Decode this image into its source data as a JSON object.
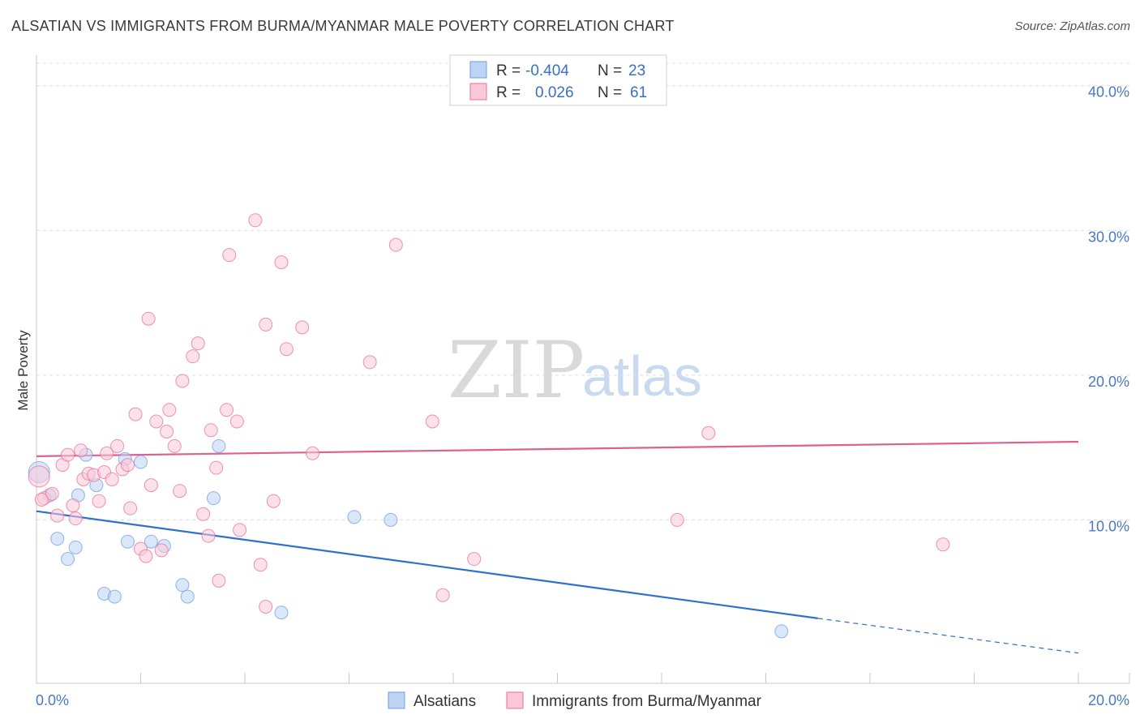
{
  "header": {
    "title": "ALSATIAN VS IMMIGRANTS FROM BURMA/MYANMAR MALE POVERTY CORRELATION CHART",
    "source": "Source: ZipAtlas.com"
  },
  "watermark": {
    "zip": "ZIP",
    "atlas": "atlas"
  },
  "legend": {
    "rows": [
      {
        "r_label": "R =",
        "r_value": "-0.404",
        "n_label": "N =",
        "n_value": "23",
        "color": "#a9c7ef"
      },
      {
        "r_label": "R =",
        "r_value": "0.026",
        "n_label": "N =",
        "n_value": "61",
        "color": "#f5b8cc"
      }
    ]
  },
  "bottom_legend": [
    {
      "label": "Alsatians",
      "color": "#a9c7ef"
    },
    {
      "label": "Immigrants from Burma/Myanmar",
      "color": "#f5b8cc"
    }
  ],
  "chart_data": {
    "type": "scatter",
    "title": "ALSATIAN VS IMMIGRANTS FROM BURMA/MYANMAR MALE POVERTY CORRELATION CHART",
    "xlabel": "",
    "ylabel": "Male Poverty",
    "xlim": [
      0,
      20
    ],
    "ylim": [
      0,
      42
    ],
    "x_tick_labels": [
      {
        "value": 0,
        "label": "0.0%"
      },
      {
        "value": 20,
        "label": "20.0%"
      }
    ],
    "y_tick_labels": [
      {
        "value": 10,
        "label": "10.0%"
      },
      {
        "value": 20,
        "label": "20.0%"
      },
      {
        "value": 30,
        "label": "30.0%"
      },
      {
        "value": 40,
        "label": "40.0%"
      }
    ],
    "series": [
      {
        "name": "Alsatians",
        "color": "#6d9de0",
        "fill": "#bcd3f3",
        "trend": {
          "x0": 0,
          "y0": 10.6,
          "x1": 15.0,
          "y1": 3.2,
          "dash_to_x": 20,
          "dash_to_y": 0.8
        },
        "points": [
          [
            0.05,
            13.3
          ],
          [
            0.25,
            11.7
          ],
          [
            0.4,
            8.7
          ],
          [
            0.6,
            7.3
          ],
          [
            0.75,
            8.1
          ],
          [
            0.8,
            11.7
          ],
          [
            0.95,
            14.5
          ],
          [
            1.15,
            12.4
          ],
          [
            1.3,
            4.9
          ],
          [
            1.5,
            4.7
          ],
          [
            1.7,
            14.2
          ],
          [
            1.75,
            8.5
          ],
          [
            2.0,
            14.0
          ],
          [
            2.2,
            8.5
          ],
          [
            2.45,
            8.2
          ],
          [
            2.8,
            5.5
          ],
          [
            2.9,
            4.7
          ],
          [
            3.4,
            11.5
          ],
          [
            3.5,
            15.1
          ],
          [
            4.7,
            3.6
          ],
          [
            6.1,
            10.2
          ],
          [
            6.8,
            10.0
          ],
          [
            14.3,
            2.3
          ]
        ]
      },
      {
        "name": "Immigrants from Burma/Myanmar",
        "color": "#e86f98",
        "fill": "#f9c9d8",
        "trend": {
          "x0": 0,
          "y0": 14.4,
          "x1": 20,
          "y1": 15.4
        },
        "points": [
          [
            0.05,
            13.0
          ],
          [
            0.15,
            11.5
          ],
          [
            0.3,
            11.8
          ],
          [
            0.4,
            10.3
          ],
          [
            0.5,
            13.8
          ],
          [
            0.6,
            14.5
          ],
          [
            0.7,
            11.0
          ],
          [
            0.75,
            10.1
          ],
          [
            0.85,
            14.8
          ],
          [
            0.9,
            12.8
          ],
          [
            1.0,
            13.2
          ],
          [
            1.1,
            13.1
          ],
          [
            1.2,
            11.3
          ],
          [
            1.3,
            13.3
          ],
          [
            1.35,
            14.6
          ],
          [
            1.45,
            12.8
          ],
          [
            1.55,
            15.1
          ],
          [
            1.65,
            13.5
          ],
          [
            1.75,
            13.8
          ],
          [
            1.8,
            10.8
          ],
          [
            1.9,
            17.3
          ],
          [
            2.0,
            8.0
          ],
          [
            2.1,
            7.5
          ],
          [
            2.15,
            23.9
          ],
          [
            2.2,
            12.4
          ],
          [
            2.3,
            16.8
          ],
          [
            2.4,
            7.9
          ],
          [
            2.5,
            16.1
          ],
          [
            2.55,
            17.6
          ],
          [
            2.65,
            15.1
          ],
          [
            2.75,
            12.0
          ],
          [
            2.8,
            19.6
          ],
          [
            3.0,
            21.3
          ],
          [
            3.1,
            22.2
          ],
          [
            3.2,
            10.4
          ],
          [
            3.3,
            8.9
          ],
          [
            3.35,
            16.2
          ],
          [
            3.45,
            13.6
          ],
          [
            3.5,
            5.8
          ],
          [
            3.65,
            17.6
          ],
          [
            3.7,
            28.3
          ],
          [
            3.85,
            16.8
          ],
          [
            3.9,
            9.3
          ],
          [
            4.2,
            30.7
          ],
          [
            4.3,
            6.9
          ],
          [
            4.4,
            23.5
          ],
          [
            4.4,
            4.0
          ],
          [
            4.55,
            11.3
          ],
          [
            4.7,
            27.8
          ],
          [
            4.8,
            21.8
          ],
          [
            5.1,
            23.3
          ],
          [
            5.3,
            14.6
          ],
          [
            6.4,
            20.9
          ],
          [
            6.9,
            29.0
          ],
          [
            7.6,
            16.8
          ],
          [
            7.8,
            4.8
          ],
          [
            8.4,
            7.3
          ],
          [
            12.3,
            10.0
          ],
          [
            12.9,
            16.0
          ],
          [
            17.4,
            8.3
          ],
          [
            0.1,
            11.4
          ]
        ]
      }
    ]
  }
}
